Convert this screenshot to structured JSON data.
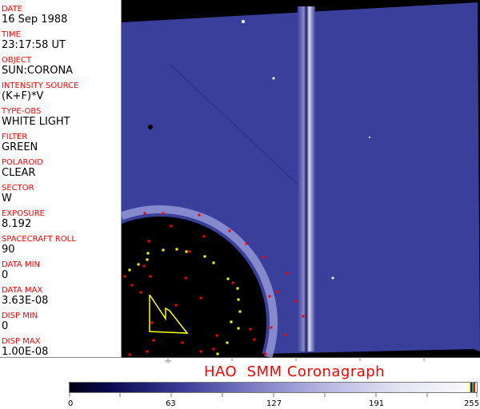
{
  "header_fields": [
    {
      "label": "DATE",
      "value": "16 Sep 1988"
    },
    {
      "label": "TIME",
      "value": "23:17:58 UT"
    },
    {
      "label": "OBJECT",
      "value": "SUN:CORONA"
    },
    {
      "label": "INTENSITY SOURCE",
      "value": "(K+F)*V"
    },
    {
      "label": "TYPE-OBS",
      "value": "WHITE LIGHT"
    },
    {
      "label": "FILTER",
      "value": "GREEN"
    },
    {
      "label": "POLAROID",
      "value": "CLEAR"
    },
    {
      "label": "SECTOR",
      "value": "W"
    },
    {
      "label": "EXPOSURE",
      "value": "8.192"
    },
    {
      "label": "SPACECRAFT ROLL",
      "value": "90"
    },
    {
      "label": "DATA MIN",
      "value": "0"
    },
    {
      "label": "DATA MAX",
      "value": "3.63E-08"
    },
    {
      "label": "DISP MIN",
      "value": "0"
    },
    {
      "label": "DISP MAX",
      "value": "1.00E-08"
    }
  ],
  "title": "HAO  SMM Coronagraph",
  "colorbar": {
    "ticks": [
      "0",
      "63",
      "127",
      "191",
      "255"
    ],
    "colors": {
      "low": "#000010",
      "mid": "#7c7cc4",
      "high": "#f8f8f8",
      "marker1": "#ffff00",
      "marker2": "#0000ff",
      "marker3": "#00c000",
      "marker4": "#ff0000"
    }
  },
  "colors": {
    "label": "#ff0000",
    "image": "#3b3f9c"
  }
}
